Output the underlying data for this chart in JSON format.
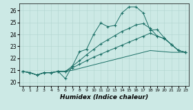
{
  "xlabel": "Humidex (Indice chaleur)",
  "xlim": [
    -0.5,
    23.5
  ],
  "ylim": [
    19.7,
    26.6
  ],
  "yticks": [
    20,
    21,
    22,
    23,
    24,
    25,
    26
  ],
  "xticks": [
    0,
    1,
    2,
    3,
    4,
    5,
    6,
    7,
    8,
    9,
    10,
    11,
    12,
    13,
    14,
    15,
    16,
    17,
    18,
    19,
    20,
    21,
    22,
    23
  ],
  "bg_color": "#cce9e5",
  "line_color": "#1a6e65",
  "lines": [
    {
      "x": [
        0,
        1,
        2,
        3,
        4,
        5,
        6,
        7,
        8,
        9,
        10,
        11,
        12,
        13,
        14,
        15,
        16,
        17,
        18,
        19,
        20,
        21,
        22,
        23
      ],
      "y": [
        20.9,
        20.8,
        20.6,
        20.8,
        20.8,
        20.9,
        20.9,
        21.0,
        21.15,
        21.3,
        21.45,
        21.6,
        21.75,
        21.9,
        22.05,
        22.2,
        22.35,
        22.5,
        22.65,
        22.6,
        22.55,
        22.5,
        22.5,
        22.5
      ],
      "marker": false
    },
    {
      "x": [
        0,
        1,
        2,
        3,
        4,
        5,
        6,
        7,
        8,
        9,
        10,
        11,
        12,
        13,
        14,
        15,
        16,
        17,
        18,
        19,
        20,
        21,
        22,
        23
      ],
      "y": [
        20.9,
        20.8,
        20.6,
        20.8,
        20.8,
        20.9,
        20.9,
        21.2,
        21.5,
        21.8,
        22.1,
        22.35,
        22.6,
        22.85,
        23.1,
        23.35,
        23.6,
        23.85,
        24.1,
        23.85,
        23.65,
        23.15,
        22.65,
        22.5
      ],
      "marker": true
    },
    {
      "x": [
        0,
        1,
        2,
        3,
        4,
        5,
        6,
        7,
        8,
        9,
        10,
        11,
        12,
        13,
        14,
        15,
        16,
        17,
        18,
        19,
        20,
        21,
        22,
        23
      ],
      "y": [
        20.9,
        20.8,
        20.6,
        20.8,
        20.8,
        20.9,
        20.9,
        21.35,
        21.8,
        22.3,
        22.75,
        23.2,
        23.55,
        23.9,
        24.25,
        24.5,
        24.8,
        24.9,
        24.5,
        23.85,
        23.65,
        23.15,
        22.65,
        22.5
      ],
      "marker": true
    },
    {
      "x": [
        0,
        1,
        2,
        3,
        4,
        5,
        6,
        7,
        8,
        9,
        10,
        11,
        12,
        13,
        14,
        15,
        16,
        17,
        18,
        19,
        20,
        21,
        22,
        23
      ],
      "y": [
        20.9,
        20.8,
        20.6,
        20.8,
        20.8,
        20.9,
        20.3,
        21.35,
        22.55,
        22.75,
        24.0,
        24.95,
        24.65,
        24.75,
        25.8,
        26.3,
        26.3,
        25.8,
        24.35,
        24.4,
        23.7,
        23.15,
        22.65,
        22.5
      ],
      "marker": true
    }
  ]
}
